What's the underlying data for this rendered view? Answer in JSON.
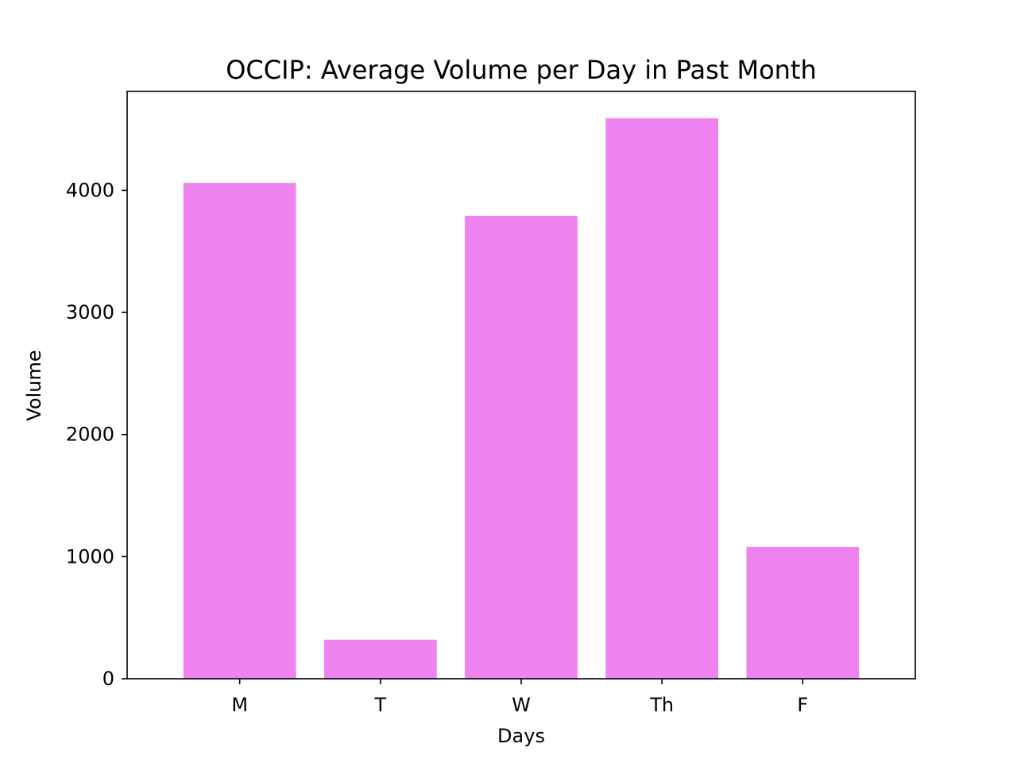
{
  "chart_data": {
    "type": "bar",
    "title": "OCCIP: Average Volume per Day in Past Month",
    "xlabel": "Days",
    "ylabel": "Volume",
    "categories": [
      "M",
      "T",
      "W",
      "Th",
      "F"
    ],
    "values": [
      4060,
      320,
      3790,
      4590,
      1080
    ],
    "ylim": [
      0,
      4810
    ],
    "yticks": [
      0,
      1000,
      2000,
      3000,
      4000
    ],
    "ytick_labels": [
      "0",
      "1000",
      "2000",
      "3000",
      "4000"
    ],
    "bar_color": "#ee82ee",
    "grid": false,
    "legend": "none"
  }
}
